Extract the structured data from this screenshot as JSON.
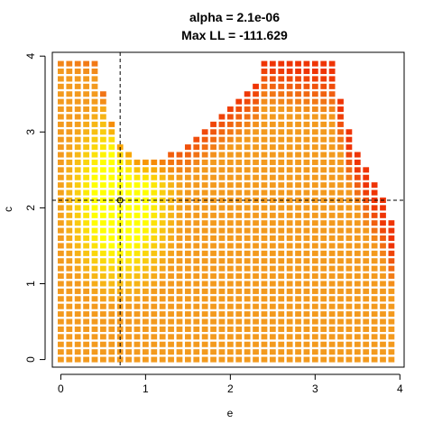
{
  "chart_data": {
    "type": "heatmap",
    "title": "alpha =  2.1e-06",
    "subtitle": "Max LL =  -111.629",
    "xlabel": "e",
    "ylabel": "c",
    "xlim": [
      -0.1,
      4.05
    ],
    "ylim": [
      -0.1,
      4.05
    ],
    "x_ticks": [
      "0",
      "1",
      "2",
      "3",
      "4"
    ],
    "y_ticks": [
      "0",
      "1",
      "2",
      "3",
      "4"
    ],
    "grid": false,
    "grid_step": 0.1,
    "grid_x_range": [
      0.0,
      3.9
    ],
    "grid_y_range": [
      0.0,
      3.9
    ],
    "boundary_e": [
      0.0,
      0.4,
      0.5,
      0.6,
      0.7,
      0.8,
      0.9,
      1.3,
      1.5,
      1.7,
      1.9,
      2.1,
      2.3,
      2.4,
      3.2,
      3.4,
      3.6,
      3.8,
      3.9
    ],
    "boundary_c_max": [
      3.9,
      3.9,
      3.5,
      3.1,
      2.8,
      2.7,
      2.6,
      2.7,
      2.8,
      3.0,
      3.2,
      3.4,
      3.6,
      3.9,
      3.9,
      3.0,
      2.5,
      2.1,
      1.8
    ],
    "color_scale": {
      "low": "#ee2200",
      "mid": "#f39a1e",
      "high": "#ffff00",
      "meaning": "log-likelihood (yellow = highest)"
    },
    "max_ll_point": {
      "e": 0.7,
      "c": 2.1
    },
    "reference_lines": {
      "vertical_e": 0.7,
      "horizontal_c": 2.1,
      "style": "dashed"
    }
  }
}
